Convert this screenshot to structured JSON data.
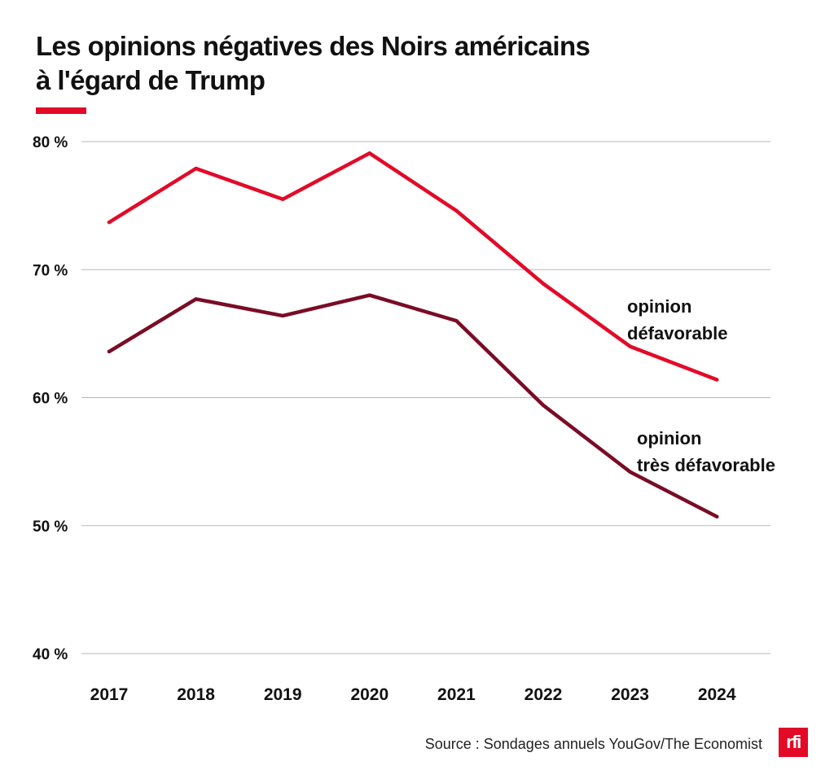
{
  "header": {
    "title_line1": "Les opinions négatives des Noirs américains",
    "title_line2": "à l'égard de Trump",
    "accent_color": "#e30a28"
  },
  "chart_data": {
    "type": "line",
    "title": "Les opinions négatives des Noirs américains à l'égard de Trump",
    "xlabel": "",
    "ylabel": "",
    "categories": [
      "2017",
      "2018",
      "2019",
      "2020",
      "2021",
      "2022",
      "2023",
      "2024"
    ],
    "ylim": [
      40,
      80
    ],
    "yticks": [
      40,
      50,
      60,
      70,
      80
    ],
    "ytick_labels": [
      "40 %",
      "50 %",
      "60 %",
      "70 %",
      "80 %"
    ],
    "grid": true,
    "series": [
      {
        "name": "opinion défavorable",
        "label_lines": [
          "opinion",
          "défavorable"
        ],
        "color": "#e30a28",
        "values": [
          73.7,
          77.9,
          75.5,
          79.1,
          74.6,
          68.9,
          64.0,
          61.4
        ]
      },
      {
        "name": "opinion très défavorable",
        "label_lines": [
          "opinion",
          "très défavorable"
        ],
        "color": "#7a0c25",
        "values": [
          63.6,
          67.7,
          66.4,
          68.0,
          66.0,
          59.4,
          54.2,
          50.7
        ]
      }
    ]
  },
  "footer": {
    "source": "Source : Sondages annuels YouGov/The Economist",
    "logo_text": "rfi"
  }
}
